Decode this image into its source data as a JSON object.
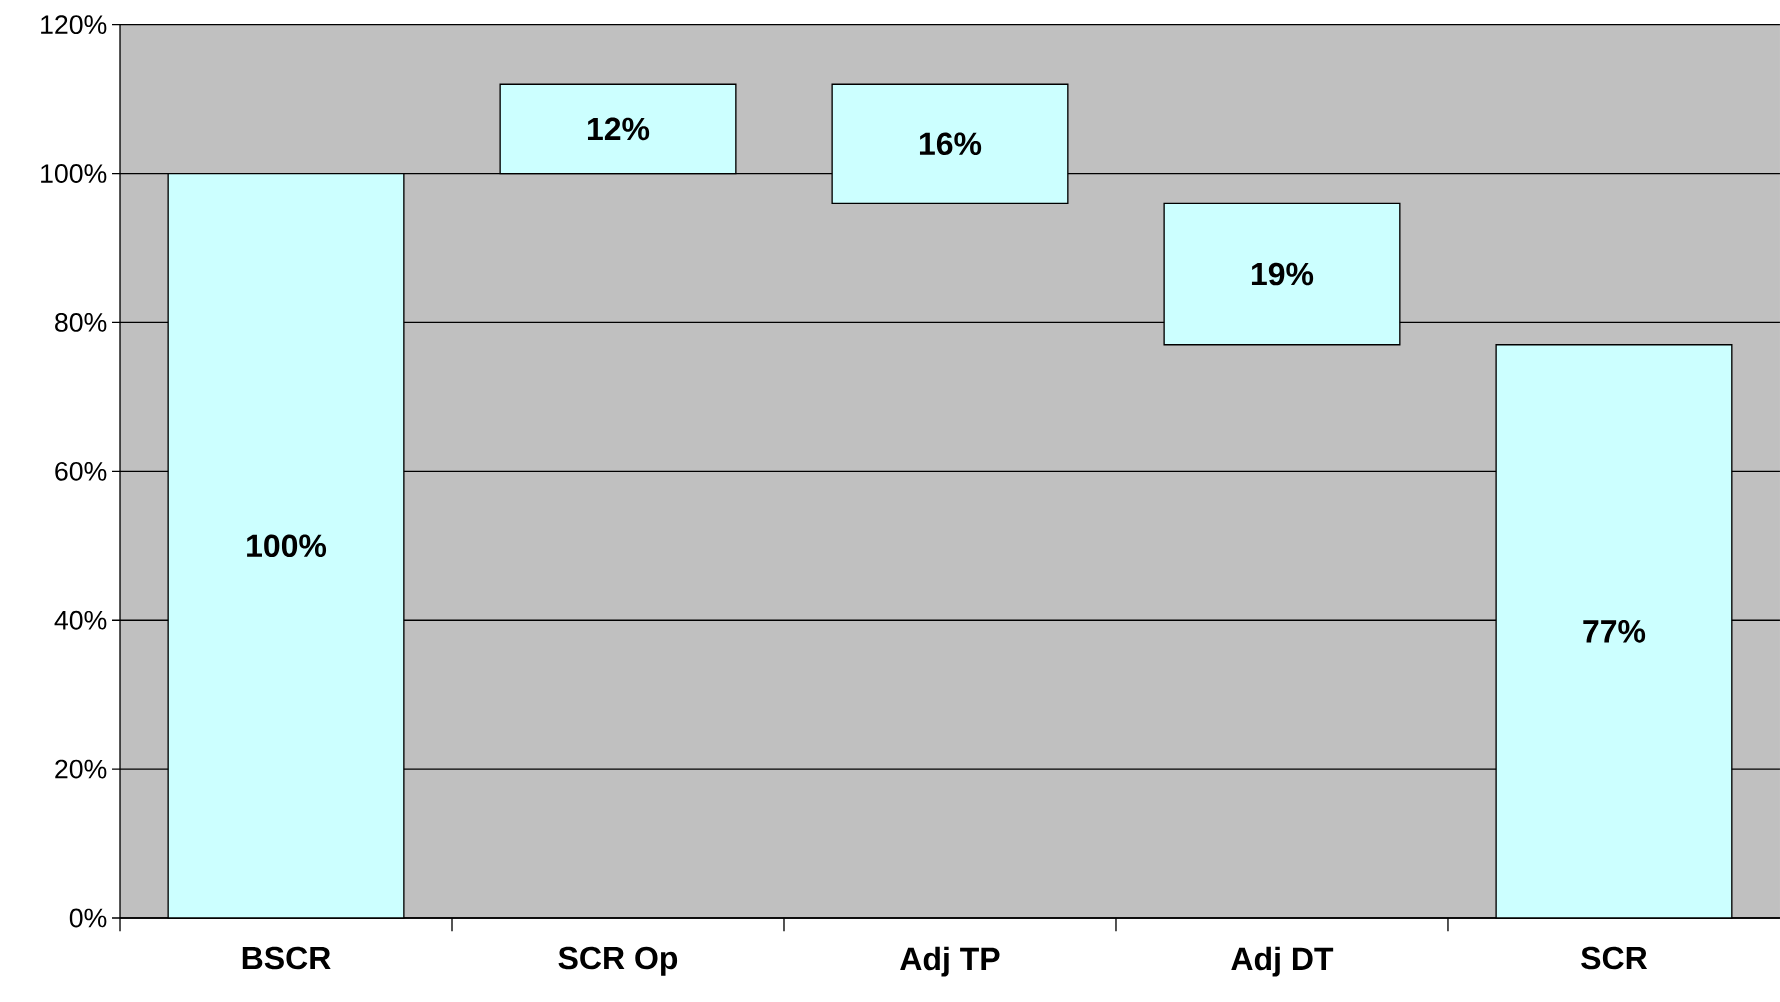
{
  "chart_data": {
    "type": "bar",
    "categories": [
      "BSCR",
      "SCR Op",
      "Adj TP",
      "Adj DT",
      "SCR"
    ],
    "values": [
      100,
      12,
      16,
      19,
      77
    ],
    "base": [
      0,
      100,
      96,
      77,
      0
    ],
    "color": "#ccffff",
    "value_labels": [
      "100%",
      "12%",
      "16%",
      "19%",
      "77%"
    ],
    "ylim": [
      0,
      120
    ],
    "yticks": [
      {
        "value": 0,
        "label": "0%"
      },
      {
        "value": 20,
        "label": "20%"
      },
      {
        "value": 40,
        "label": "40%"
      },
      {
        "value": 60,
        "label": "60%"
      },
      {
        "value": 80,
        "label": "80%"
      },
      {
        "value": 100,
        "label": "100%"
      },
      {
        "value": 120,
        "label": "120%"
      }
    ],
    "grid": "y"
  }
}
